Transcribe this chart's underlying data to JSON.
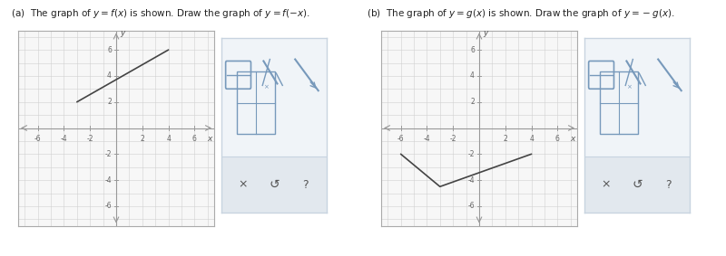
{
  "title_a": "(a)  The graph of $y=f(x)$ is shown. Draw the graph of $y=f(-x)$.",
  "title_b": "(b)  The graph of $y=g(x)$ is shown. Draw the graph of $y=-g(x)$.",
  "graph_a_line": [
    [
      -3,
      2
    ],
    [
      4,
      6
    ]
  ],
  "graph_b_line": [
    [
      -6,
      -2
    ],
    [
      -3,
      -4.5
    ],
    [
      4,
      -2
    ]
  ],
  "xticks": [
    -6,
    -4,
    -2,
    2,
    4,
    6
  ],
  "yticks": [
    -6,
    -4,
    -2,
    2,
    4,
    6
  ],
  "grid_color": "#d0d0d0",
  "axis_color": "#999999",
  "line_color": "#444444",
  "graph_bg": "#f7f7f7",
  "panel_bg": "#ffffff",
  "toolbar_bg": "#f0f4f8",
  "toolbar_bottom_bg": "#e2e8ee",
  "toolbar_border": "#c8d4e0",
  "tick_fontsize": 5.5,
  "label_fontsize": 6.5,
  "title_fontsize": 7.5
}
